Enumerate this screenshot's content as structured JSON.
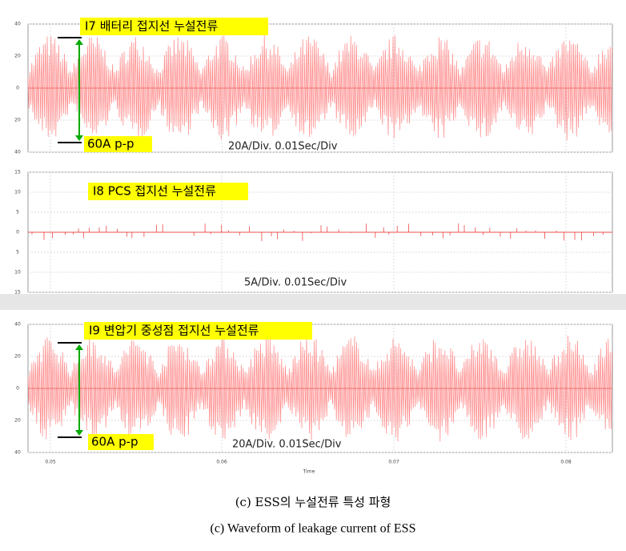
{
  "panels": [
    {
      "label": "I7 배터리 접지선 누설전류",
      "pp_label": "60A p-p",
      "scale": "20A/Div. 0.01Sec/Div",
      "yticks": [
        "40",
        "20",
        "0",
        "20",
        "40"
      ]
    },
    {
      "label": "I8 PCS 접지선 누설전류",
      "scale": "5A/Div. 0.01Sec/Div",
      "yticks": [
        "15",
        "10",
        "5",
        "0",
        "5",
        "10",
        "15"
      ]
    },
    {
      "label": "I9 변압기 중성점 접지선 누설전류",
      "pp_label": "60A p-p",
      "scale": "20A/Div. 0.01Sec/Div",
      "yticks": [
        "40",
        "20",
        "0",
        "20",
        "40"
      ]
    }
  ],
  "x_axis": {
    "ticks": [
      "0.05",
      "0.06",
      "0.07",
      "0.08"
    ],
    "title": "Time"
  },
  "caption": {
    "korean": "(c) ESS의 누설전류 특성 파형",
    "english": "(c) Waveform of leakage current of ESS"
  }
}
